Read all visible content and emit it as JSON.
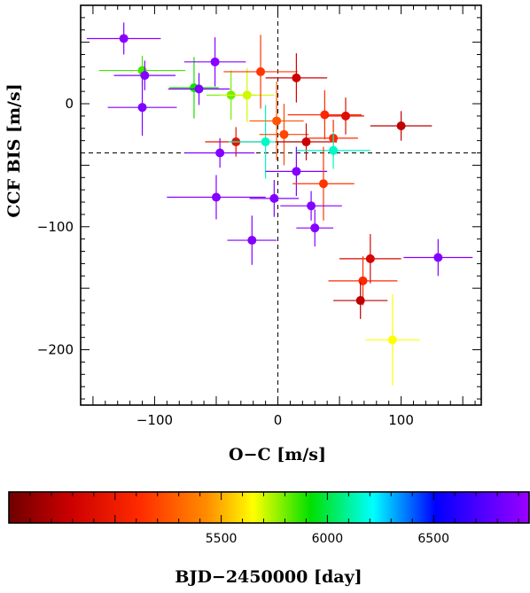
{
  "chart_data": [
    {
      "type": "scatter",
      "xlabel": "O−C [m/s]",
      "ylabel": "CCF BIS [m/s]",
      "xlim": [
        -160,
        165
      ],
      "ylim": [
        -245,
        80
      ],
      "x_ticks": [
        -100,
        0,
        100
      ],
      "y_ticks": [
        0,
        -100,
        -200
      ],
      "x_tick_labels": [
        "−100",
        "0",
        "100"
      ],
      "y_tick_labels": [
        "0",
        "−100",
        "−200"
      ],
      "reference_lines": {
        "vertical_x": 0,
        "horizontal_y": -40
      },
      "grid": false,
      "color_scale": "BJD−2450000 (rainbow, dark red to violet)",
      "points": [
        {
          "x": -125,
          "y": 53,
          "xerr": 30,
          "yerr": 13,
          "bjd": 6900
        },
        {
          "x": -110,
          "y": 27,
          "xerr": 35,
          "yerr": 12,
          "bjd": 5850
        },
        {
          "x": -108,
          "y": 23,
          "xerr": 25,
          "yerr": 12,
          "bjd": 6880
        },
        {
          "x": -110,
          "y": -3,
          "xerr": 28,
          "yerr": 23,
          "bjd": 6870
        },
        {
          "x": -68,
          "y": 13,
          "xerr": 20,
          "yerr": 25,
          "bjd": 5900
        },
        {
          "x": -64,
          "y": 12,
          "xerr": 25,
          "yerr": 13,
          "bjd": 6870
        },
        {
          "x": -51,
          "y": 34,
          "xerr": 25,
          "yerr": 20,
          "bjd": 6900
        },
        {
          "x": -38,
          "y": 7,
          "xerr": 20,
          "yerr": 20,
          "bjd": 5800
        },
        {
          "x": -25,
          "y": 7,
          "xerr": 22,
          "yerr": 22,
          "bjd": 5700
        },
        {
          "x": -14,
          "y": 26,
          "xerr": 30,
          "yerr": 30,
          "bjd": 5150
        },
        {
          "x": 15,
          "y": 21,
          "xerr": 25,
          "yerr": 20,
          "bjd": 4800
        },
        {
          "x": -34,
          "y": -31,
          "xerr": 25,
          "yerr": 12,
          "bjd": 4950
        },
        {
          "x": -47,
          "y": -40,
          "xerr": 28,
          "yerr": 12,
          "bjd": 6880
        },
        {
          "x": -10,
          "y": -31,
          "xerr": 30,
          "yerr": 30,
          "bjd": 6150
        },
        {
          "x": -1,
          "y": -14,
          "xerr": 22,
          "yerr": 32,
          "bjd": 5250
        },
        {
          "x": 5,
          "y": -25,
          "xerr": 20,
          "yerr": 25,
          "bjd": 5200
        },
        {
          "x": 23,
          "y": -31,
          "xerr": 25,
          "yerr": 15,
          "bjd": 4800
        },
        {
          "x": 38,
          "y": -9,
          "xerr": 30,
          "yerr": 20,
          "bjd": 5100
        },
        {
          "x": 55,
          "y": -10,
          "xerr": 15,
          "yerr": 15,
          "bjd": 4900
        },
        {
          "x": 45,
          "y": -28,
          "xerr": 20,
          "yerr": 15,
          "bjd": 5100
        },
        {
          "x": 45,
          "y": -38,
          "xerr": 30,
          "yerr": 15,
          "bjd": 6150
        },
        {
          "x": 100,
          "y": -18,
          "xerr": 25,
          "yerr": 12,
          "bjd": 4750
        },
        {
          "x": 15,
          "y": -55,
          "xerr": 25,
          "yerr": 20,
          "bjd": 6880
        },
        {
          "x": 37,
          "y": -65,
          "xerr": 25,
          "yerr": 30,
          "bjd": 5150
        },
        {
          "x": -50,
          "y": -76,
          "xerr": 40,
          "yerr": 18,
          "bjd": 6880
        },
        {
          "x": -3,
          "y": -77,
          "xerr": 20,
          "yerr": 15,
          "bjd": 6880
        },
        {
          "x": 27,
          "y": -83,
          "xerr": 25,
          "yerr": 12,
          "bjd": 6880
        },
        {
          "x": 30,
          "y": -101,
          "xerr": 15,
          "yerr": 15,
          "bjd": 6880
        },
        {
          "x": -21,
          "y": -111,
          "xerr": 20,
          "yerr": 20,
          "bjd": 6880
        },
        {
          "x": 75,
          "y": -126,
          "xerr": 25,
          "yerr": 20,
          "bjd": 4850
        },
        {
          "x": 130,
          "y": -125,
          "xerr": 28,
          "yerr": 15,
          "bjd": 6880
        },
        {
          "x": 69,
          "y": -144,
          "xerr": 28,
          "yerr": 20,
          "bjd": 5100
        },
        {
          "x": 67,
          "y": -160,
          "xerr": 22,
          "yerr": 15,
          "bjd": 4750
        },
        {
          "x": 93,
          "y": -192,
          "xerr": 22,
          "yerr": 37,
          "bjd": 5650
        }
      ]
    },
    {
      "type": "colorbar",
      "label": "BJD−2450000 [day]",
      "range": [
        4500,
        6950
      ],
      "ticks": [
        5500,
        6000,
        6500
      ],
      "tick_labels": [
        "5500",
        "6000",
        "6500"
      ],
      "minor_tick_step": 100
    }
  ]
}
